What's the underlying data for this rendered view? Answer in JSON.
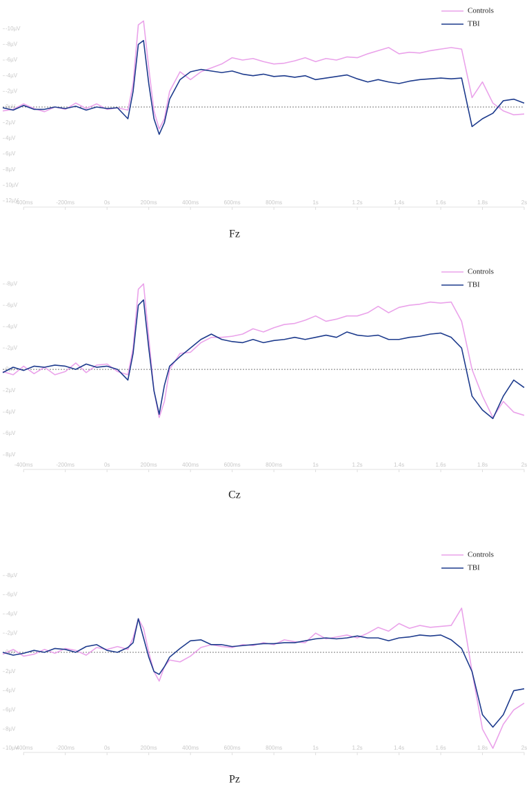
{
  "chart_data": [
    {
      "type": "line",
      "title": "Fz",
      "xlim": [
        -500,
        2000
      ],
      "ylim": [
        12,
        -12
      ],
      "reference_line": 0,
      "x": [
        -500,
        -450,
        -400,
        -350,
        -300,
        -250,
        -200,
        -150,
        -100,
        -50,
        0,
        50,
        100,
        125,
        150,
        175,
        200,
        225,
        250,
        275,
        300,
        350,
        400,
        450,
        500,
        550,
        600,
        650,
        700,
        750,
        800,
        850,
        900,
        950,
        1000,
        1050,
        1100,
        1150,
        1200,
        1250,
        1300,
        1350,
        1400,
        1450,
        1500,
        1550,
        1600,
        1650,
        1700,
        1750,
        1800,
        1850,
        1900,
        1950,
        2000
      ],
      "xticks": [
        {
          "value": -400,
          "label": "-400ms"
        },
        {
          "value": -200,
          "label": "-200ms"
        },
        {
          "value": 0,
          "label": "0s"
        },
        {
          "value": 200,
          "label": "200ms"
        },
        {
          "value": 400,
          "label": "400ms"
        },
        {
          "value": 600,
          "label": "600ms"
        },
        {
          "value": 800,
          "label": "800ms"
        },
        {
          "value": 1000,
          "label": "1s"
        },
        {
          "value": 1200,
          "label": "1.2s"
        },
        {
          "value": 1400,
          "label": "1.4s"
        },
        {
          "value": 1600,
          "label": "1.6s"
        },
        {
          "value": 1800,
          "label": "1.8s"
        },
        {
          "value": 2000,
          "label": "2s"
        }
      ],
      "yticks": [
        {
          "value": -10,
          "label": "-10µV"
        },
        {
          "value": -8,
          "label": "-8µV"
        },
        {
          "value": -6,
          "label": "-6µV"
        },
        {
          "value": -4,
          "label": "-4µV"
        },
        {
          "value": -2,
          "label": "-2µV"
        },
        {
          "value": 0,
          "label": "0µV"
        },
        {
          "value": 2,
          "label": "2µV"
        },
        {
          "value": 4,
          "label": "4µV"
        },
        {
          "value": 6,
          "label": "6µV"
        },
        {
          "value": 8,
          "label": "8µV"
        },
        {
          "value": 10,
          "label": "10µV"
        },
        {
          "value": 12,
          "label": "12µV"
        }
      ],
      "series": [
        {
          "name": "Controls",
          "color": "#eaa2ea",
          "values": [
            0.5,
            0.3,
            -0.4,
            0.2,
            0.6,
            0,
            0.3,
            -0.5,
            0.2,
            -0.4,
            0.3,
            0.1,
            0.4,
            -3,
            -10.5,
            -11,
            -5,
            0.5,
            2.8,
            1.5,
            -2,
            -4.5,
            -3.5,
            -4.5,
            -5,
            -5.5,
            -6.3,
            -6,
            -6.2,
            -5.8,
            -5.5,
            -5.6,
            -5.9,
            -6.3,
            -5.8,
            -6.2,
            -6,
            -6.4,
            -6.3,
            -6.8,
            -7.2,
            -7.6,
            -6.8,
            -7,
            -6.9,
            -7.2,
            -7.4,
            -7.6,
            -7.4,
            -1.2,
            -3.2,
            -0.5,
            0.5,
            1,
            0.9
          ]
        },
        {
          "name": "TBI",
          "color": "#1c3a8c",
          "values": [
            0.1,
            0.4,
            -0.2,
            0.3,
            0.3,
            0,
            0.2,
            -0.1,
            0.4,
            0,
            0.2,
            0.1,
            1.5,
            -2,
            -8,
            -8.5,
            -3,
            1.5,
            3.5,
            2,
            -1,
            -3.5,
            -4.5,
            -4.8,
            -4.6,
            -4.4,
            -4.6,
            -4.2,
            -4,
            -4.2,
            -3.9,
            -4,
            -3.8,
            -4,
            -3.5,
            -3.7,
            -3.9,
            -4.1,
            -3.6,
            -3.2,
            -3.5,
            -3.2,
            -3,
            -3.3,
            -3.5,
            -3.6,
            -3.7,
            -3.6,
            -3.7,
            2.5,
            1.5,
            0.8,
            -0.8,
            -1,
            -0.5
          ]
        }
      ]
    },
    {
      "type": "line",
      "title": "Cz",
      "xlim": [
        -500,
        2000
      ],
      "ylim": [
        8,
        -9.5
      ],
      "reference_line": 0,
      "x": [
        -500,
        -450,
        -400,
        -350,
        -300,
        -250,
        -200,
        -150,
        -100,
        -50,
        0,
        50,
        100,
        125,
        150,
        175,
        200,
        225,
        250,
        275,
        300,
        350,
        400,
        450,
        500,
        550,
        600,
        650,
        700,
        750,
        800,
        850,
        900,
        950,
        1000,
        1050,
        1100,
        1150,
        1200,
        1250,
        1300,
        1350,
        1400,
        1450,
        1500,
        1550,
        1600,
        1650,
        1700,
        1750,
        1800,
        1850,
        1900,
        1950,
        2000
      ],
      "xticks": [
        {
          "value": -400,
          "label": "-400ms"
        },
        {
          "value": -200,
          "label": "-200ms"
        },
        {
          "value": 0,
          "label": "0s"
        },
        {
          "value": 200,
          "label": "200ms"
        },
        {
          "value": 400,
          "label": "400ms"
        },
        {
          "value": 600,
          "label": "600ms"
        },
        {
          "value": 800,
          "label": "800ms"
        },
        {
          "value": 1000,
          "label": "1s"
        },
        {
          "value": 1200,
          "label": "1.2s"
        },
        {
          "value": 1400,
          "label": "1.4s"
        },
        {
          "value": 1600,
          "label": "1.6s"
        },
        {
          "value": 1800,
          "label": "1.8s"
        },
        {
          "value": 2000,
          "label": "2s"
        }
      ],
      "yticks": [
        {
          "value": -8,
          "label": "-8µV"
        },
        {
          "value": -6,
          "label": "-6µV"
        },
        {
          "value": -4,
          "label": "-4µV"
        },
        {
          "value": -2,
          "label": "-2µV"
        },
        {
          "value": 0,
          "label": "0µV"
        },
        {
          "value": 2,
          "label": "2µV"
        },
        {
          "value": 4,
          "label": "4µV"
        },
        {
          "value": 6,
          "label": "6µV"
        },
        {
          "value": 8,
          "label": "8µV"
        }
      ],
      "series": [
        {
          "name": "Controls",
          "color": "#eaa2ea",
          "values": [
            0.2,
            0.5,
            -0.3,
            0.4,
            -0.2,
            0.5,
            0.2,
            -0.6,
            0.3,
            -0.4,
            -0.5,
            0.2,
            0.5,
            -2,
            -7.5,
            -8,
            -3,
            2,
            4.5,
            3,
            0,
            -1.5,
            -1.6,
            -2.5,
            -3,
            -3,
            -3.1,
            -3.3,
            -3.8,
            -3.5,
            -3.9,
            -4.2,
            -4.3,
            -4.6,
            -5,
            -4.5,
            -4.7,
            -5,
            -5,
            -5.3,
            -5.9,
            -5.3,
            -5.8,
            -6,
            -6.1,
            -6.3,
            -6.2,
            -6.3,
            -4.5,
            0,
            2.5,
            4.5,
            3,
            4,
            4.3
          ]
        },
        {
          "name": "TBI",
          "color": "#1c3a8c",
          "values": [
            0.3,
            -0.2,
            0.1,
            -0.3,
            -0.2,
            -0.4,
            -0.3,
            0,
            -0.5,
            -0.2,
            -0.3,
            0,
            1,
            -1.5,
            -6,
            -6.5,
            -2,
            2,
            4.2,
            1.5,
            -0.3,
            -1.2,
            -2,
            -2.8,
            -3.3,
            -2.8,
            -2.6,
            -2.5,
            -2.8,
            -2.5,
            -2.7,
            -2.8,
            -3,
            -2.8,
            -3,
            -3.2,
            -3,
            -3.5,
            -3.2,
            -3.1,
            -3.2,
            -2.8,
            -2.8,
            -3,
            -3.1,
            -3.3,
            -3.4,
            -3,
            -2,
            2.5,
            3.8,
            4.6,
            2.5,
            1,
            1.7
          ]
        }
      ]
    },
    {
      "type": "line",
      "title": "Pz",
      "xlim": [
        -500,
        2000
      ],
      "ylim": [
        10,
        -10.5
      ],
      "reference_line": 0,
      "x": [
        -500,
        -450,
        -400,
        -350,
        -300,
        -250,
        -200,
        -150,
        -100,
        -50,
        0,
        50,
        100,
        125,
        150,
        175,
        200,
        225,
        250,
        275,
        300,
        350,
        400,
        450,
        500,
        550,
        600,
        650,
        700,
        750,
        800,
        850,
        900,
        950,
        1000,
        1050,
        1100,
        1150,
        1200,
        1250,
        1300,
        1350,
        1400,
        1450,
        1500,
        1550,
        1600,
        1650,
        1700,
        1750,
        1800,
        1850,
        1900,
        1950,
        2000
      ],
      "xticks": [
        {
          "value": -400,
          "label": "-400ms"
        },
        {
          "value": -200,
          "label": "-200ms"
        },
        {
          "value": 0,
          "label": "0s"
        },
        {
          "value": 200,
          "label": "200ms"
        },
        {
          "value": 400,
          "label": "400ms"
        },
        {
          "value": 600,
          "label": "600ms"
        },
        {
          "value": 800,
          "label": "800ms"
        },
        {
          "value": 1000,
          "label": "1s"
        },
        {
          "value": 1200,
          "label": "1.2s"
        },
        {
          "value": 1400,
          "label": "1.4s"
        },
        {
          "value": 1600,
          "label": "1.6s"
        },
        {
          "value": 1800,
          "label": "1.8s"
        },
        {
          "value": 2000,
          "label": "2s"
        }
      ],
      "yticks": [
        {
          "value": -8,
          "label": "-8µV"
        },
        {
          "value": -6,
          "label": "-6µV"
        },
        {
          "value": -4,
          "label": "-4µV"
        },
        {
          "value": -2,
          "label": "-2µV"
        },
        {
          "value": 0,
          "label": "0µV"
        },
        {
          "value": 2,
          "label": "2µV"
        },
        {
          "value": 4,
          "label": "4µV"
        },
        {
          "value": 6,
          "label": "6µV"
        },
        {
          "value": 8,
          "label": "8µV"
        },
        {
          "value": 10,
          "label": "10µV"
        }
      ],
      "series": [
        {
          "name": "Controls",
          "color": "#eaa2ea",
          "values": [
            0.2,
            -0.3,
            0.4,
            0.2,
            -0.3,
            0.1,
            -0.4,
            -0.2,
            0.3,
            -0.5,
            -0.3,
            -0.6,
            -0.3,
            -1.5,
            -3.5,
            -2.5,
            0,
            2,
            3,
            1.5,
            0.8,
            1,
            0.4,
            -0.5,
            -0.8,
            -0.6,
            -0.5,
            -0.8,
            -0.7,
            -1,
            -0.8,
            -1.3,
            -1.1,
            -1,
            -2,
            -1.4,
            -1.6,
            -1.8,
            -1.5,
            -2,
            -2.6,
            -2.2,
            -3,
            -2.5,
            -2.8,
            -2.6,
            -2.7,
            -2.8,
            -4.6,
            2,
            8,
            10,
            7.5,
            6,
            5.3
          ]
        },
        {
          "name": "TBI",
          "color": "#1c3a8c",
          "values": [
            0,
            0.3,
            0.1,
            -0.2,
            0,
            -0.4,
            -0.3,
            0,
            -0.6,
            -0.8,
            -0.2,
            0,
            -0.5,
            -1,
            -3.5,
            -1.5,
            0.5,
            2,
            2.3,
            1.5,
            0.5,
            -0.4,
            -1.2,
            -1.3,
            -0.8,
            -0.8,
            -0.6,
            -0.7,
            -0.8,
            -0.9,
            -0.9,
            -1,
            -1,
            -1.2,
            -1.4,
            -1.5,
            -1.4,
            -1.5,
            -1.7,
            -1.5,
            -1.5,
            -1.2,
            -1.5,
            -1.6,
            -1.8,
            -1.7,
            -1.8,
            -1.3,
            -0.4,
            2,
            6.5,
            7.8,
            6.5,
            4,
            3.8
          ]
        }
      ]
    }
  ]
}
